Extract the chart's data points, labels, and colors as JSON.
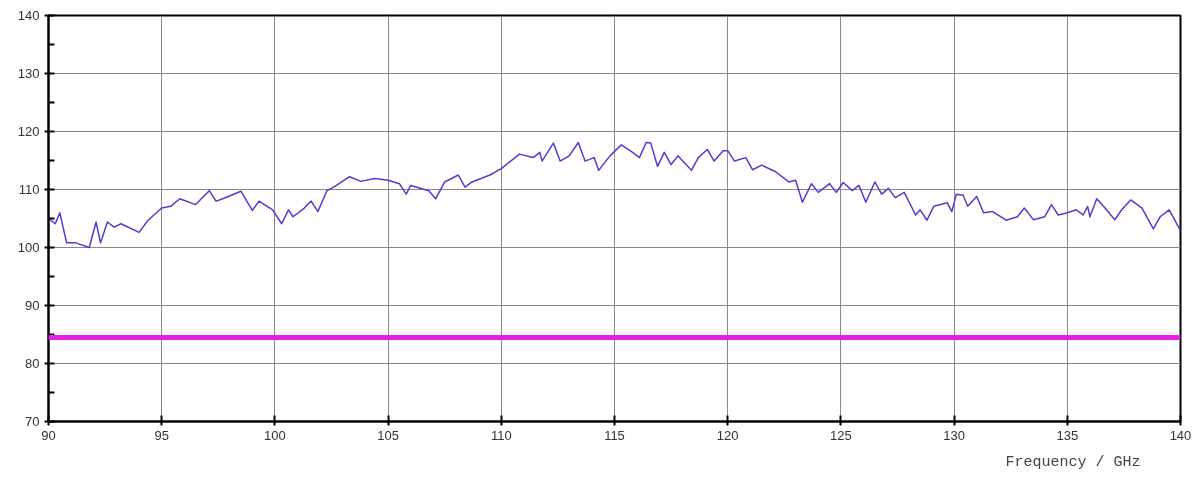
{
  "chart_data": {
    "type": "line",
    "xlabel": "Frequency / GHz",
    "x": [
      90.0,
      90.3,
      90.5,
      90.8,
      91.2,
      91.8,
      92.1,
      92.3,
      92.6,
      92.9,
      93.2,
      94.0,
      94.4,
      95.0,
      95.4,
      95.8,
      96.5,
      97.1,
      97.4,
      97.7,
      98.5,
      99.0,
      99.3,
      99.9,
      100.3,
      100.6,
      100.8,
      101.3,
      101.6,
      101.9,
      102.3,
      102.6,
      103.3,
      103.8,
      104.4,
      105.0,
      105.5,
      105.8,
      106.0,
      106.8,
      107.1,
      107.5,
      108.1,
      108.4,
      108.7,
      109.5,
      110.0,
      110.8,
      111.4,
      111.7,
      111.8,
      112.3,
      112.6,
      113.0,
      113.4,
      113.7,
      114.1,
      114.3,
      114.8,
      115.3,
      115.8,
      116.1,
      116.4,
      116.6,
      116.9,
      117.2,
      117.5,
      117.8,
      118.4,
      118.7,
      119.1,
      119.4,
      119.8,
      120.0,
      120.3,
      120.8,
      121.1,
      121.5,
      122.1,
      122.7,
      123.0,
      123.3,
      123.7,
      124.0,
      124.5,
      124.8,
      125.1,
      125.5,
      125.8,
      126.1,
      126.5,
      126.8,
      127.1,
      127.4,
      127.8,
      128.3,
      128.5,
      128.8,
      129.1,
      129.7,
      129.9,
      130.1,
      130.4,
      130.6,
      131.0,
      131.3,
      131.7,
      132.3,
      132.8,
      133.1,
      133.5,
      134.0,
      134.3,
      134.6,
      135.0,
      135.4,
      135.7,
      135.9,
      136.0,
      136.3,
      136.6,
      137.1,
      137.4,
      137.8,
      138.3,
      138.8,
      139.1,
      139.5,
      140.0
    ],
    "series": [
      {
        "color": "#4a40d0",
        "values": [
          105.0,
          104.1,
          106.0,
          100.8,
          100.8,
          100.0,
          104.4,
          100.8,
          104.4,
          103.5,
          104.1,
          102.6,
          104.7,
          106.8,
          107.1,
          108.4,
          107.4,
          109.8,
          108.0,
          108.4,
          109.7,
          106.4,
          108.0,
          106.5,
          104.1,
          106.5,
          105.3,
          106.8,
          108.0,
          106.2,
          109.8,
          110.4,
          112.2,
          111.4,
          111.9,
          111.6,
          111.0,
          109.2,
          110.7,
          109.8,
          108.4,
          111.3,
          112.5,
          110.4,
          111.3,
          112.5,
          113.6,
          116.1,
          115.5,
          116.4,
          114.9,
          118.0,
          114.9,
          115.8,
          118.1,
          114.9,
          115.5,
          113.3,
          115.8,
          117.7,
          116.4,
          115.5,
          118.1,
          118.0,
          114.0,
          116.4,
          114.3,
          115.8,
          113.3,
          115.5,
          116.9,
          114.9,
          116.7,
          116.7,
          114.9,
          115.5,
          113.4,
          114.2,
          113.1,
          111.3,
          111.6,
          107.8,
          111.0,
          109.5,
          111.0,
          109.5,
          111.2,
          109.8,
          110.7,
          107.8,
          111.3,
          109.2,
          110.2,
          108.6,
          109.5,
          105.6,
          106.5,
          104.7,
          107.1,
          107.7,
          106.2,
          109.2,
          109.0,
          107.1,
          108.8,
          106.0,
          106.2,
          104.7,
          105.3,
          106.8,
          104.8,
          105.3,
          107.4,
          105.6,
          106.0,
          106.5,
          105.6,
          107.1,
          105.3,
          108.4,
          107.1,
          104.8,
          106.5,
          108.2,
          106.8,
          103.2,
          105.3,
          106.5,
          102.9
        ]
      }
    ],
    "xlim": [
      90,
      140
    ],
    "xticks": [
      90,
      95,
      100,
      105,
      110,
      115,
      120,
      125,
      130,
      135,
      140
    ],
    "ylim": [
      70,
      140
    ],
    "yticks": [
      70,
      {
        "value": 75,
        "label": null
      },
      80,
      {
        "value": 85,
        "label": null
      },
      90,
      {
        "value": 95,
        "label": null
      },
      100,
      {
        "value": 105,
        "label": null
      },
      110,
      {
        "value": 115,
        "label": null
      },
      120,
      {
        "value": 125,
        "label": null
      },
      130,
      {
        "value": 135,
        "label": null
      },
      140
    ],
    "ref_lines": [
      {
        "axis": "y",
        "value": 84.5,
        "color": "#e61ee6"
      }
    ],
    "grid": true,
    "line_style": "solid"
  }
}
